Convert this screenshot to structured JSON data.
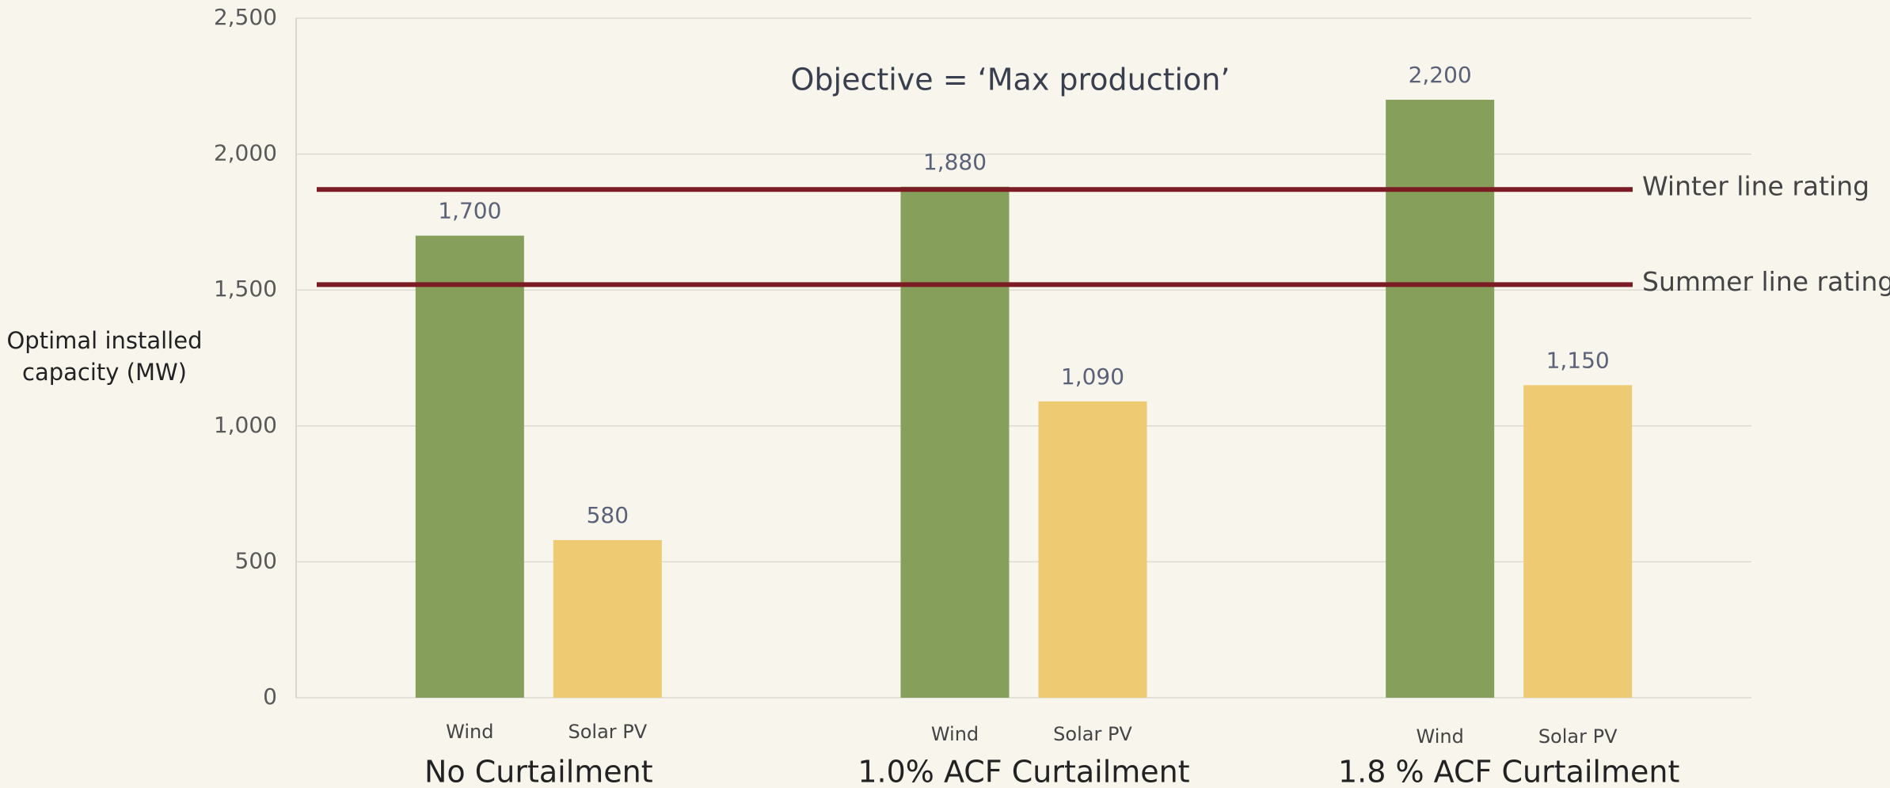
{
  "chart_data": {
    "type": "bar",
    "title": "Objective = ‘Max production’",
    "ylabel": "Optimal installed capacity (MW)",
    "groups": [
      "No Curtailment",
      "1.0% ACF Curtailment",
      "1.8 % ACF Curtailment"
    ],
    "series": [
      {
        "name": "Wind",
        "color": "#86a05c",
        "values": [
          1700,
          1880,
          2200
        ],
        "value_labels": [
          "1,700",
          "1,880",
          "2,200"
        ]
      },
      {
        "name": "Solar PV",
        "color": "#eeca72",
        "values": [
          580,
          1090,
          1150
        ],
        "value_labels": [
          "580",
          "1,090",
          "1,150"
        ]
      }
    ],
    "reference_lines": [
      {
        "label": "Winter line rating",
        "value": 1870,
        "color": "#7b1c24"
      },
      {
        "label": "Summer line rating",
        "value": 1520,
        "color": "#7b1c24"
      }
    ],
    "ylim": [
      0,
      2500
    ],
    "yticks": [
      0,
      500,
      {
        "value": 1000,
        "label": "1,000"
      },
      {
        "value": 1500,
        "label": "1,500"
      },
      {
        "value": 2000,
        "label": "2,000"
      },
      {
        "value": 2500,
        "label": "2,500"
      }
    ],
    "grid": true
  }
}
